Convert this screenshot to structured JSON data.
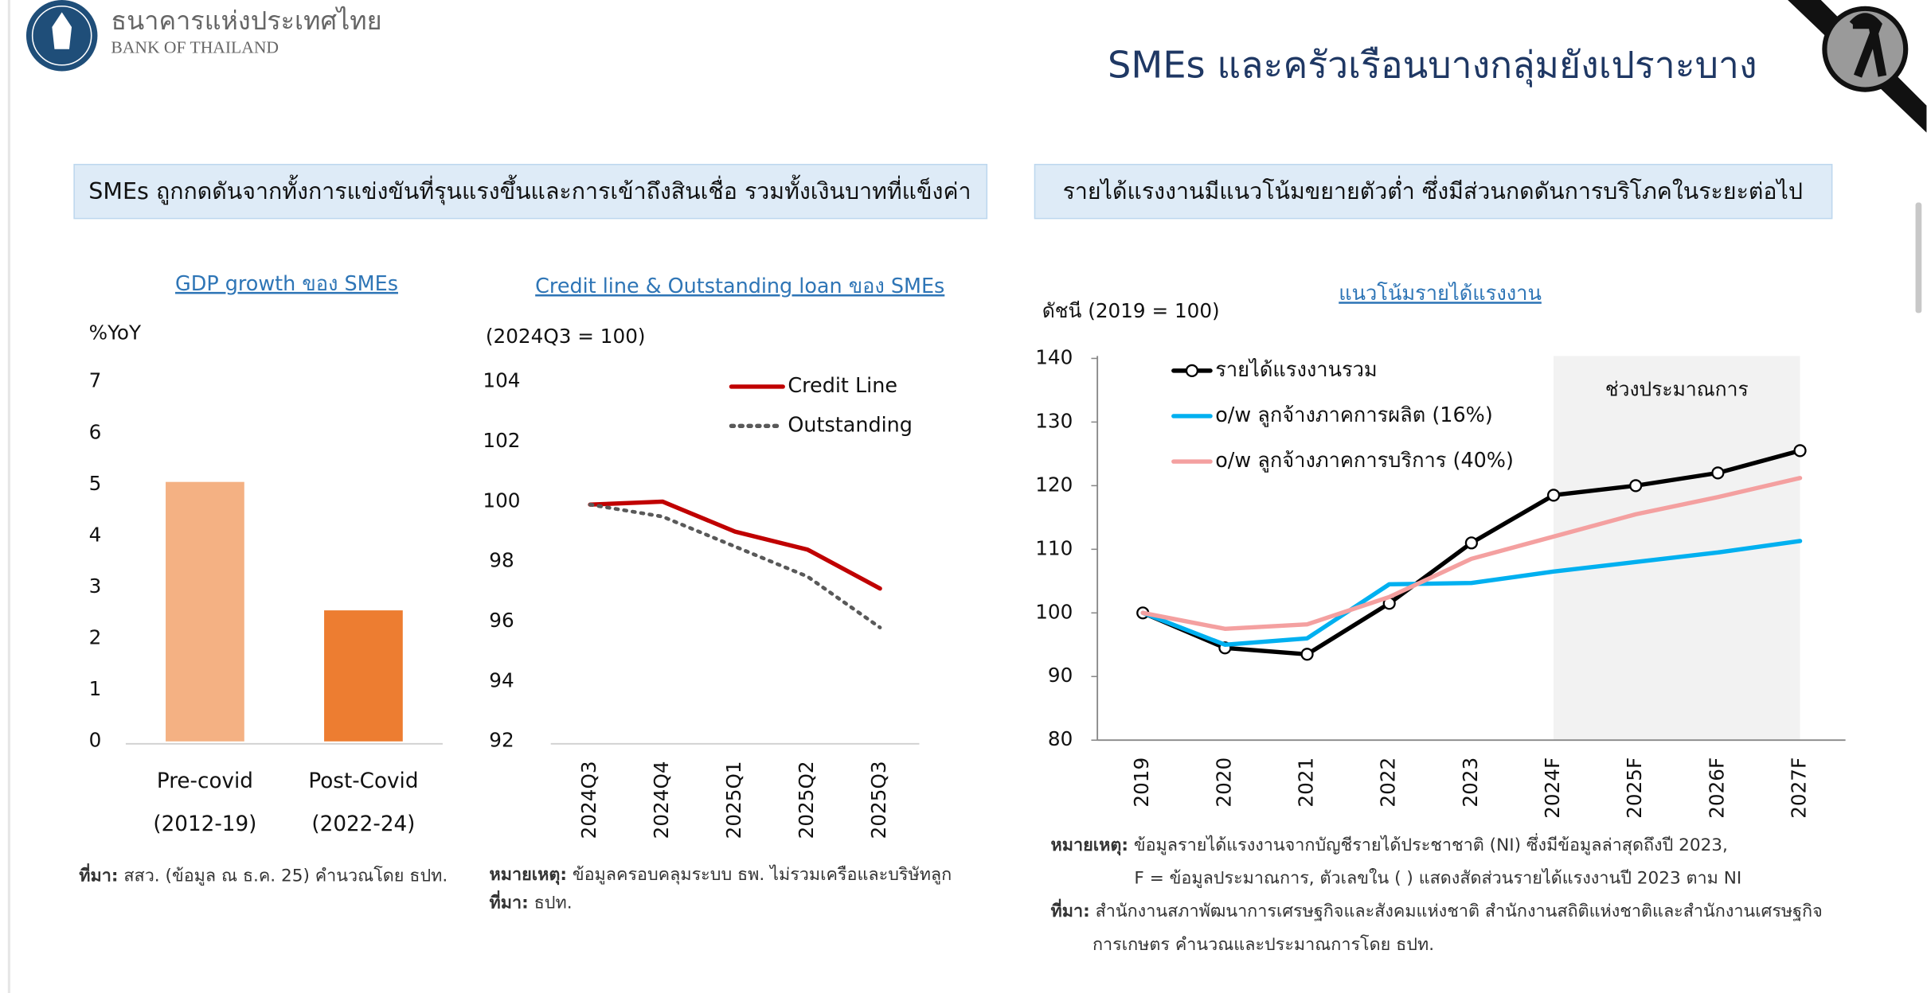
{
  "header": {
    "org_th": "ธนาคารแห่งประเทศไทย",
    "org_en": "BANK OF THAILAND",
    "title": "SMEs และครัวเรือนบางกลุ่มยังเปราะบาง"
  },
  "panels": [
    "SMEs ถูกกดดันจากทั้งการแข่งขันที่รุนแรงขึ้นและการเข้าถึงสินเชื่อ รวมทั้งเงินบาทที่แข็งค่า",
    "รายได้แรงงานมีแนวโน้มขยายตัวต่ำ ซึ่งมีส่วนกดดันการบริโภคในระยะต่อไป"
  ],
  "chart_data": [
    {
      "type": "bar",
      "title": "GDP growth ของ SMEs",
      "y_label": "%YoY",
      "categories": [
        [
          "Pre-covid",
          "(2012-19)"
        ],
        [
          "Post-Covid",
          "(2022-24)"
        ]
      ],
      "values": [
        5.05,
        2.55
      ],
      "colors": [
        "#f4b183",
        "#ed7d31"
      ],
      "ylim": [
        0,
        7
      ],
      "yticks": [
        0,
        1,
        2,
        3,
        4,
        5,
        6,
        7
      ],
      "notes": [
        {
          "label": "ที่มา:",
          "lines": [
            "สสว. (ข้อมูล ณ ธ.ค. 25) คำนวณโดย ธปท."
          ]
        }
      ]
    },
    {
      "type": "line",
      "title": "Credit line & Outstanding loan ของ SMEs",
      "y_label": "(2024Q3 = 100)",
      "categories": [
        "2024Q3",
        "2024Q4",
        "2025Q1",
        "2025Q2",
        "2025Q3"
      ],
      "series": [
        {
          "name": "Credit Line",
          "color": "#c00000",
          "dash": false,
          "values": [
            99.9,
            100.0,
            99.0,
            98.4,
            97.1
          ]
        },
        {
          "name": "Outstanding",
          "color": "#595959",
          "dash": true,
          "values": [
            99.9,
            99.5,
            98.5,
            97.5,
            95.8
          ]
        }
      ],
      "ylim": [
        92,
        104
      ],
      "yticks": [
        92,
        94,
        96,
        98,
        100,
        102,
        104
      ],
      "notes": [
        {
          "label": "หมายเหตุ:",
          "lines": [
            "ข้อมูลครอบคลุมระบบ ธพ. ไม่รวมเครือและบริษัทลูก"
          ]
        },
        {
          "label": "ที่มา:",
          "lines": [
            "ธปท."
          ]
        }
      ]
    },
    {
      "type": "line",
      "title": "แนวโน้มรายได้แรงงาน",
      "y_label": "ดัชนี (2019 = 100)",
      "categories": [
        "2019",
        "2020",
        "2021",
        "2022",
        "2023",
        "2024F",
        "2025F",
        "2026F",
        "2027F"
      ],
      "series": [
        {
          "name": "รายได้แรงงานรวม",
          "color": "#000000",
          "markers": true,
          "values": [
            100,
            94.5,
            93.5,
            101.5,
            111,
            118.5,
            120,
            122,
            125.5
          ]
        },
        {
          "name": "o/w ลูกจ้างภาคการผลิต (16%)",
          "color": "#00b0f0",
          "values": [
            100,
            95,
            96,
            104.5,
            104.7,
            106.5,
            108,
            109.5,
            111.3
          ]
        },
        {
          "name": "o/w ลูกจ้างภาคการบริการ (40%)",
          "color": "#f4a0a0",
          "values": [
            100,
            97.5,
            98.2,
            102.5,
            108.5,
            112,
            115.5,
            118.2,
            121.2
          ]
        }
      ],
      "ylim": [
        80,
        140
      ],
      "yticks": [
        80,
        90,
        100,
        110,
        120,
        130,
        140
      ],
      "shade": {
        "label": "ช่วงประมาณการ",
        "from": "2024F",
        "to": "2027F",
        "color": "#f2f2f2"
      },
      "notes": [
        {
          "label": "หมายเหตุ:",
          "lines": [
            "ข้อมูลรายได้แรงงานจากบัญชีรายได้ประชาชาติ (NI) ซึ่งมีข้อมูลล่าสุดถึงปี 2023,",
            "F = ข้อมูลประมาณการ, ตัวเลขใน ( ) แสดงสัดส่วนรายได้แรงงานปี 2023 ตาม NI"
          ]
        },
        {
          "label": "ที่มา:",
          "lines": [
            "สำนักงานสภาพัฒนาการเศรษฐกิจและสังคมแห่งชาติ สำนักงานสถิติแห่งชาติและสำนักงานเศรษฐกิจ",
            "การเกษตร คำนวณและประมาณการโดย ธปท."
          ]
        }
      ]
    }
  ]
}
